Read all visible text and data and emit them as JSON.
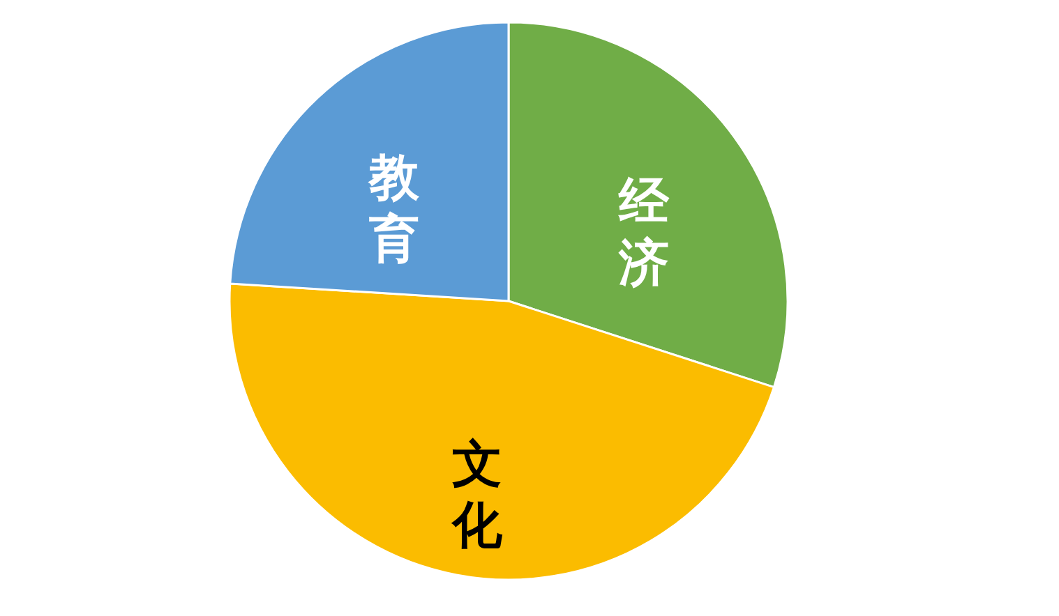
{
  "chart_data": {
    "type": "pie",
    "categories": [
      "经济",
      "文化",
      "教育"
    ],
    "values": [
      30,
      46,
      24
    ],
    "colors": [
      "#70ad47",
      "#fbbc00",
      "#5b9bd5"
    ],
    "legend": false
  }
}
